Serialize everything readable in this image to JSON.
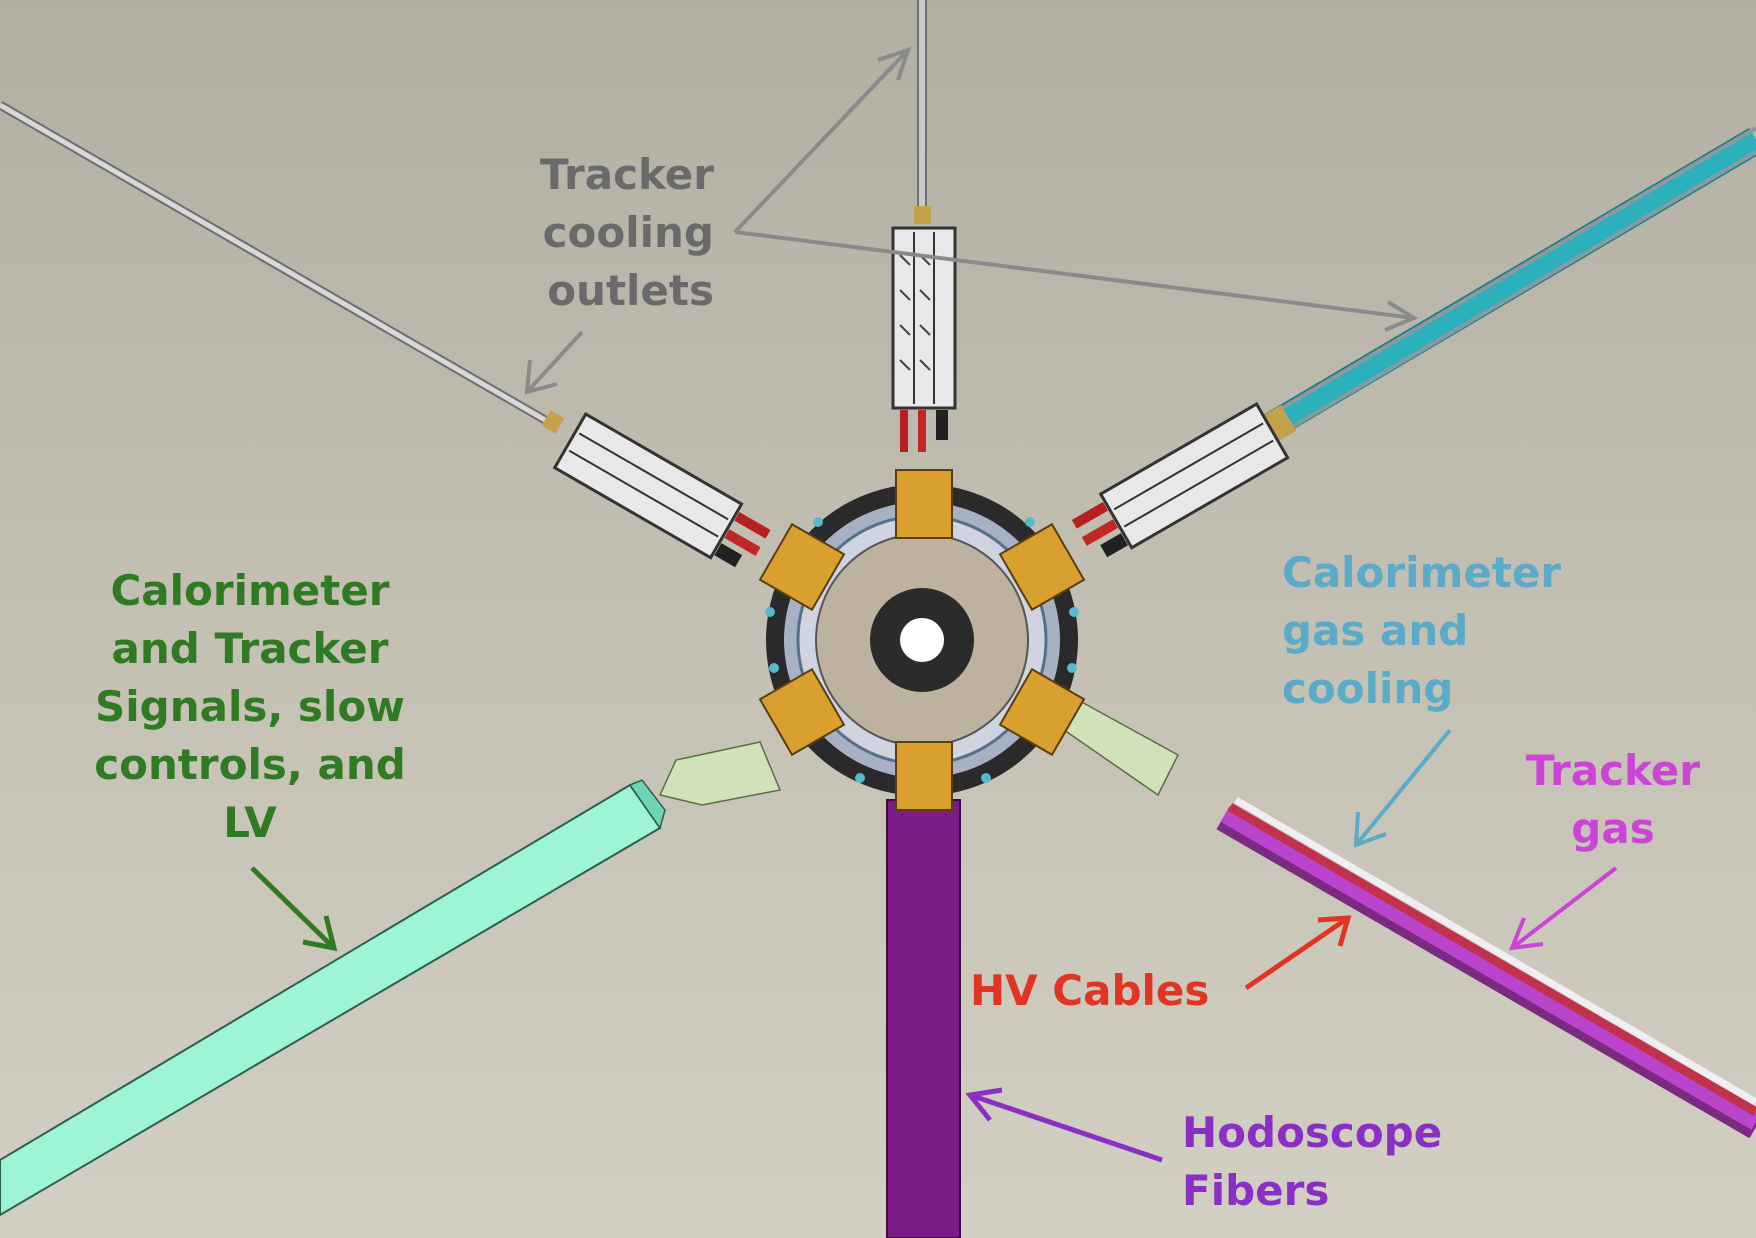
{
  "labels": {
    "tracker_cooling_outlets": [
      "Tracker",
      "cooling",
      "outlets"
    ],
    "calorimeter_tracker_signals": [
      "Calorimeter",
      "and Tracker",
      "Signals, slow",
      "controls, and",
      "LV"
    ],
    "calorimeter_gas_cooling": [
      "Calorimeter",
      "gas and",
      "cooling"
    ],
    "tracker_gas": [
      "Tracker",
      "gas"
    ],
    "hv_cables": "HV Cables",
    "hodoscope_fibers": [
      "Hodoscope",
      "Fibers"
    ]
  },
  "colors": {
    "background": "#bdbaad",
    "tracker_cooling_outlets": "#6a6a6a",
    "calorimeter_tracker_signals": "#2f7a22",
    "calorimeter_gas_cooling": "#5aaac8",
    "tracker_gas": "#cc44d6",
    "hv_cables": "#e03424",
    "hodoscope_fibers": "#8a2fc4",
    "signal_bundle": "#9ef5d6",
    "gas_cooling_bundle": "#2aa7b3",
    "hodoscope_bundle": "#7d1c86",
    "crate_bracket": "#d9a030"
  }
}
